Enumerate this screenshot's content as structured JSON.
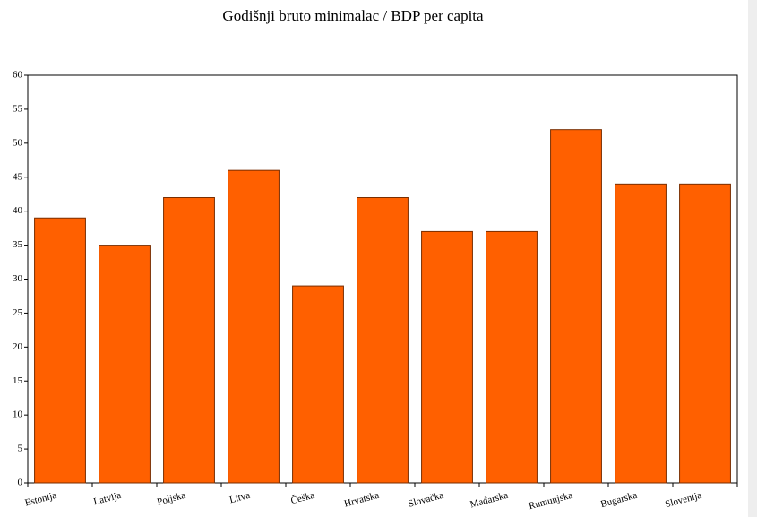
{
  "chart_data": {
    "type": "bar",
    "title": "Godišnji bruto minimalac / BDP per capita",
    "categories": [
      "Estonija",
      "Latvija",
      "Poljska",
      "Litva",
      "Češka",
      "Hrvatska",
      "Slovačka",
      "Mađarska",
      "Rumunjska",
      "Bugarska",
      "Slovenija"
    ],
    "values": [
      39,
      35,
      42,
      46,
      29,
      42,
      37,
      37,
      52,
      44,
      44
    ],
    "color": "#ff6000",
    "ylim": [
      0,
      60
    ],
    "yticks": [
      0,
      5,
      10,
      15,
      20,
      25,
      30,
      35,
      40,
      45,
      50,
      55,
      60
    ],
    "grid": false
  }
}
